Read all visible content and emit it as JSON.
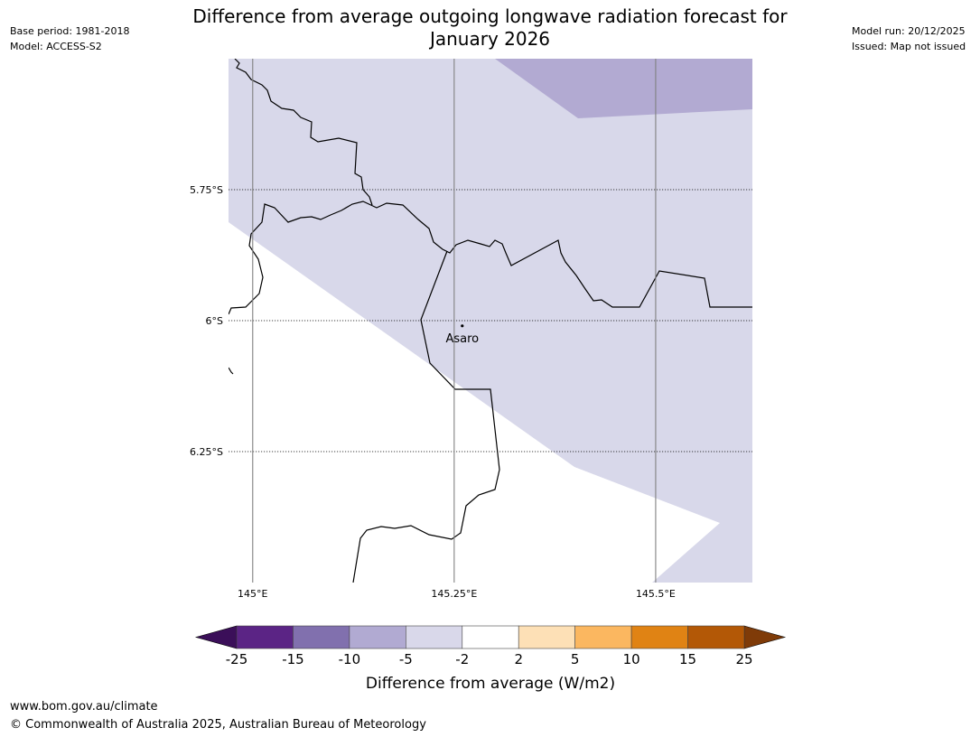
{
  "title_line1": "Difference from average outgoing longwave radiation forecast for",
  "title_line2": "January 2026",
  "meta_left": {
    "base_period": "Base period: 1981-2018",
    "model": "Model: ACCESS-S2"
  },
  "meta_right": {
    "model_run": "Model run: 20/12/2025",
    "issued": "Issued: Map not issued"
  },
  "map": {
    "lon_range": [
      144.97,
      145.62
    ],
    "lat_range": [
      -6.5,
      -5.5
    ],
    "lat_labels": [
      "5.75°S",
      "6°S",
      "6.25°S"
    ],
    "lon_labels": [
      "145°E",
      "145.25°E",
      "145.5°E"
    ],
    "place": {
      "name": "Asaro",
      "lon": 145.26,
      "lat": -6.01
    },
    "colors": {
      "fill_light": "#d8d8ea",
      "fill_medium": "#b2aad2",
      "border": "#000000",
      "gridline": "#808080"
    }
  },
  "colorbar": {
    "title": "Difference from average (W/m2)",
    "tick_labels": [
      "-25",
      "-15",
      "-10",
      "-5",
      "-2",
      "2",
      "5",
      "10",
      "15",
      "25"
    ],
    "colors": [
      "#5b2485",
      "#8170ae",
      "#b1aad2",
      "#d9d8ea",
      "#ffffff",
      "#fde0b6",
      "#fbb760",
      "#e08314",
      "#b35806"
    ],
    "under_color": "#3b0f59",
    "over_color": "#7f3b08"
  },
  "footer": {
    "url": "www.bom.gov.au/climate",
    "copyright": "© Commonwealth of Australia 2025, Australian Bureau of Meteorology"
  }
}
